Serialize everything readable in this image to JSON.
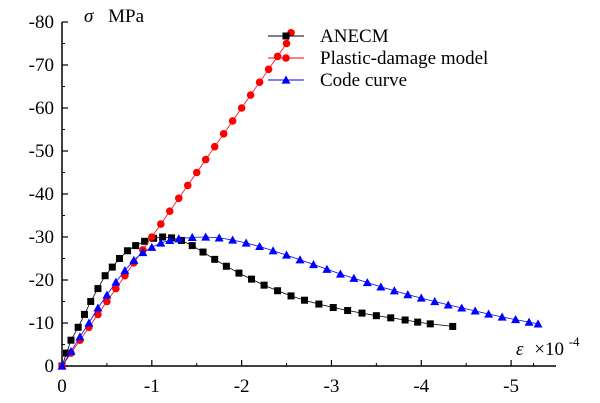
{
  "chart_data": {
    "type": "scatter",
    "ylabel_symbol": "σ",
    "ylabel_unit": "MPa",
    "xlabel_symbol": "ε",
    "xlabel_unit_base": "×10",
    "xlabel_unit_exp": "-4",
    "xlim": [
      0,
      -5.5
    ],
    "ylim": [
      0,
      -80
    ],
    "xticks": [
      {
        "value": 0,
        "label": "0"
      },
      {
        "value": -1,
        "label": "-1"
      },
      {
        "value": -2,
        "label": "-2"
      },
      {
        "value": -3,
        "label": "-3"
      },
      {
        "value": -4,
        "label": "-4"
      },
      {
        "value": -5,
        "label": "-5"
      }
    ],
    "yticks": [
      {
        "value": 0,
        "label": "0"
      },
      {
        "value": -10,
        "label": "-10"
      },
      {
        "value": -20,
        "label": "-20"
      },
      {
        "value": -30,
        "label": "-30"
      },
      {
        "value": -40,
        "label": "-40"
      },
      {
        "value": -50,
        "label": "-50"
      },
      {
        "value": -60,
        "label": "-60"
      },
      {
        "value": -70,
        "label": "-70"
      },
      {
        "value": -80,
        "label": "-80"
      }
    ],
    "grid": false,
    "legend_position": "top-right",
    "series": [
      {
        "name": "ANECM",
        "marker": "square",
        "color": "#000000",
        "line": true,
        "points": [
          [
            0,
            0
          ],
          [
            -0.05,
            -3
          ],
          [
            -0.1,
            -6
          ],
          [
            -0.18,
            -9
          ],
          [
            -0.25,
            -12
          ],
          [
            -0.32,
            -15
          ],
          [
            -0.4,
            -18
          ],
          [
            -0.48,
            -21
          ],
          [
            -0.56,
            -23
          ],
          [
            -0.64,
            -25
          ],
          [
            -0.73,
            -26.8
          ],
          [
            -0.82,
            -28
          ],
          [
            -0.92,
            -29
          ],
          [
            -1.02,
            -29.7
          ],
          [
            -1.12,
            -30
          ],
          [
            -1.22,
            -29.8
          ],
          [
            -1.33,
            -29.2
          ],
          [
            -1.45,
            -28
          ],
          [
            -1.57,
            -26.5
          ],
          [
            -1.7,
            -24.8
          ],
          [
            -1.83,
            -23.2
          ],
          [
            -1.97,
            -21.6
          ],
          [
            -2.11,
            -20.2
          ],
          [
            -2.25,
            -18.8
          ],
          [
            -2.4,
            -17.5
          ],
          [
            -2.55,
            -16.3
          ],
          [
            -2.7,
            -15.3
          ],
          [
            -2.86,
            -14.4
          ],
          [
            -3.02,
            -13.6
          ],
          [
            -3.18,
            -12.9
          ],
          [
            -3.34,
            -12.3
          ],
          [
            -3.5,
            -11.7
          ],
          [
            -3.66,
            -11.2
          ],
          [
            -3.82,
            -10.7
          ],
          [
            -3.96,
            -10.2
          ],
          [
            -4.1,
            -9.8
          ],
          [
            -4.35,
            -9.2
          ]
        ]
      },
      {
        "name": "Plastic-damage model",
        "marker": "circle",
        "color": "#ff0000",
        "line": true,
        "points": [
          [
            0,
            0
          ],
          [
            -0.1,
            -3
          ],
          [
            -0.2,
            -6
          ],
          [
            -0.3,
            -9
          ],
          [
            -0.4,
            -12
          ],
          [
            -0.5,
            -15
          ],
          [
            -0.6,
            -18
          ],
          [
            -0.7,
            -21
          ],
          [
            -0.8,
            -24
          ],
          [
            -0.9,
            -27
          ],
          [
            -1.0,
            -30
          ],
          [
            -1.1,
            -33
          ],
          [
            -1.2,
            -36
          ],
          [
            -1.3,
            -39
          ],
          [
            -1.4,
            -42
          ],
          [
            -1.5,
            -45
          ],
          [
            -1.6,
            -48
          ],
          [
            -1.7,
            -51
          ],
          [
            -1.8,
            -54
          ],
          [
            -1.9,
            -57
          ],
          [
            -2.0,
            -60
          ],
          [
            -2.1,
            -63
          ],
          [
            -2.2,
            -66
          ],
          [
            -2.3,
            -69
          ],
          [
            -2.4,
            -72
          ],
          [
            -2.5,
            -75
          ],
          [
            -2.55,
            -77.5
          ]
        ]
      },
      {
        "name": "Code curve",
        "marker": "triangle",
        "color": "#0000ff",
        "line": true,
        "points": [
          [
            0,
            0
          ],
          [
            -0.1,
            -3.4
          ],
          [
            -0.2,
            -6.8
          ],
          [
            -0.3,
            -10
          ],
          [
            -0.4,
            -13.5
          ],
          [
            -0.5,
            -16.5
          ],
          [
            -0.6,
            -19.5
          ],
          [
            -0.7,
            -22.2
          ],
          [
            -0.8,
            -24.6
          ],
          [
            -0.9,
            -26.4
          ],
          [
            -1.0,
            -27.6
          ],
          [
            -1.1,
            -28.6
          ],
          [
            -1.2,
            -29.2
          ],
          [
            -1.3,
            -29.6
          ],
          [
            -1.45,
            -29.9
          ],
          [
            -1.6,
            -30
          ],
          [
            -1.75,
            -29.8
          ],
          [
            -1.9,
            -29.3
          ],
          [
            -2.05,
            -28.6
          ],
          [
            -2.2,
            -27.8
          ],
          [
            -2.35,
            -26.8
          ],
          [
            -2.5,
            -25.8
          ],
          [
            -2.65,
            -24.7
          ],
          [
            -2.8,
            -23.6
          ],
          [
            -2.95,
            -22.5
          ],
          [
            -3.1,
            -21.4
          ],
          [
            -3.25,
            -20.4
          ],
          [
            -3.4,
            -19.4
          ],
          [
            -3.55,
            -18.4
          ],
          [
            -3.7,
            -17.5
          ],
          [
            -3.85,
            -16.6
          ],
          [
            -4.0,
            -15.8
          ],
          [
            -4.15,
            -15
          ],
          [
            -4.3,
            -14.2
          ],
          [
            -4.45,
            -13.5
          ],
          [
            -4.6,
            -12.8
          ],
          [
            -4.75,
            -12.1
          ],
          [
            -4.9,
            -11.4
          ],
          [
            -5.05,
            -10.8
          ],
          [
            -5.2,
            -10.2
          ],
          [
            -5.3,
            -9.8
          ]
        ]
      }
    ]
  }
}
